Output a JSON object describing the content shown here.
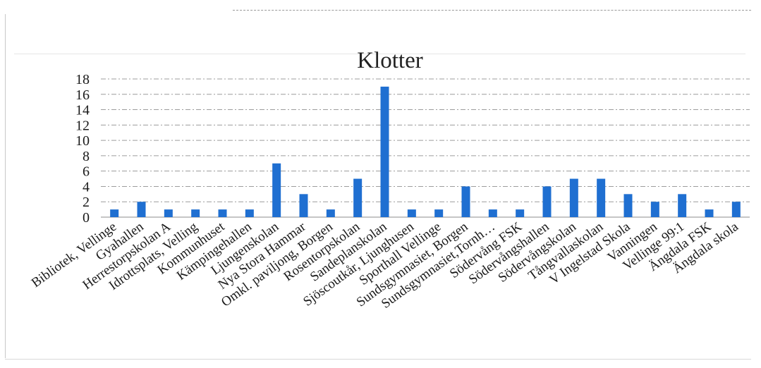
{
  "chart_data": {
    "type": "bar",
    "title": "Klotter",
    "xlabel": "",
    "ylabel": "",
    "ylim": [
      0,
      18
    ],
    "yticks": [
      0,
      2,
      4,
      6,
      8,
      10,
      12,
      14,
      16,
      18
    ],
    "grid": true,
    "legend": "none",
    "bar_color": "#1f6fd1",
    "categories": [
      "Bibliotek, Vellinge",
      "Gyahallen",
      "Herrestorpskolan A",
      "Idrottsplats, Velling",
      "Kommunhuset",
      "Kämpingehallen",
      "Ljungenskolan",
      "Nya Stora Hammar",
      "Omkl. paviljong, Borgen",
      "Rosentorpskolan",
      "Sandeplanskolan",
      "Sjöscoutkår, Ljunghusen",
      "Sporthall Vellinge",
      "Sundsgymnasiet, Borgen",
      "Sundsgymnasiet,Tornh…",
      "Södervång FSK",
      "Södervångshallen",
      "Södervångskolan",
      "Tångvallaskolan",
      "V Ingelstad Skola",
      "Vanningen",
      "Vellinge 99:1",
      "Ängdala FSK",
      "Ängdala skola"
    ],
    "values": [
      1,
      2,
      1,
      1,
      1,
      1,
      7,
      3,
      1,
      5,
      17,
      1,
      1,
      4,
      1,
      1,
      4,
      5,
      5,
      3,
      2,
      3,
      1,
      2
    ]
  }
}
